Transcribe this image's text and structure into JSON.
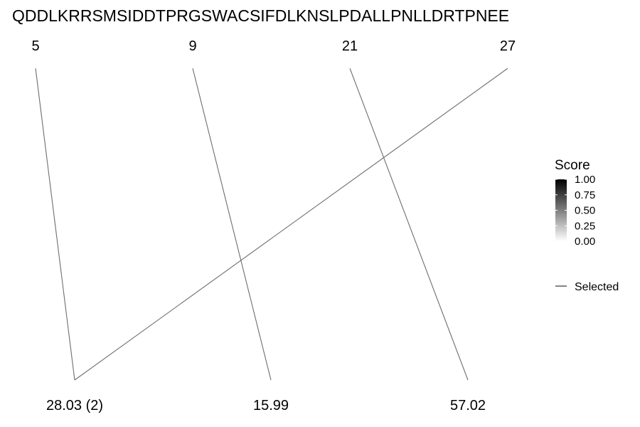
{
  "sequence": "QDDLKRRSMSIDDTPRGSWACSIFDLKNSLPDALLPNLLDRTPNEE",
  "chart_data": {
    "type": "line",
    "top_axis": {
      "labels": [
        "5",
        "9",
        "21",
        "27"
      ]
    },
    "bottom_axis": {
      "labels": [
        "28.03 (2)",
        "15.99",
        "57.02"
      ]
    },
    "links": [
      {
        "from": "5",
        "to": "28.03 (2)"
      },
      {
        "from": "9",
        "to": "15.99"
      },
      {
        "from": "21",
        "to": "57.02"
      },
      {
        "from": "27",
        "to": "28.03 (2)"
      }
    ],
    "legend": {
      "title": "Score",
      "position": "right",
      "gradient_stops": [
        "#000000",
        "#ffffff"
      ],
      "ticks": [
        "1.00",
        "0.75",
        "0.50",
        "0.25",
        "0.00"
      ],
      "selected_label": "Selected",
      "selected_color": "#6e6e6e"
    }
  }
}
